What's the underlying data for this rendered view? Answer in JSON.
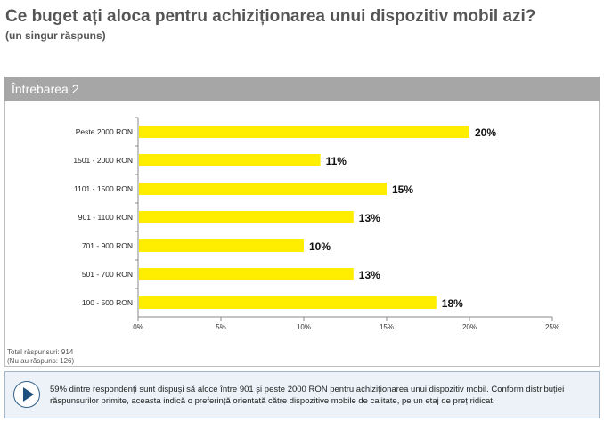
{
  "header": {
    "title": "Ce buget ați aloca pentru achiziționarea unui dispozitiv mobil azi?",
    "subtitle": "(un singur răspuns)"
  },
  "question_bar": {
    "label": "Întrebarea 2"
  },
  "chart_data": {
    "type": "bar",
    "orientation": "horizontal",
    "categories": [
      "Peste 2000 RON",
      "1501 - 2000 RON",
      "1101 - 1500 RON",
      "901 - 1100 RON",
      "701 - 900 RON",
      "501 - 700 RON",
      "100 - 500 RON"
    ],
    "values": [
      20,
      11,
      15,
      13,
      10,
      13,
      18
    ],
    "value_labels": [
      "20%",
      "11%",
      "15%",
      "13%",
      "10%",
      "13%",
      "18%"
    ],
    "xlim": [
      0,
      25
    ],
    "xticks": [
      "0%",
      "5%",
      "10%",
      "15%",
      "20%",
      "25%"
    ],
    "bar_color": "#ffee00",
    "grid": false
  },
  "totals": {
    "total": "Total răspunsuri: 914",
    "no_answer": "(Nu au răspuns: 126)"
  },
  "info": {
    "icon": "play-icon",
    "text": "59% dintre respondenți sunt dispuși să aloce între 901 și peste 2000 RON pentru achiziționarea unui dispozitiv mobil. Conform distribuției răspunsurilor primite, aceasta indică o preferință orientată către dispozitive mobile de calitate, pe un etaj de preț ridicat."
  }
}
